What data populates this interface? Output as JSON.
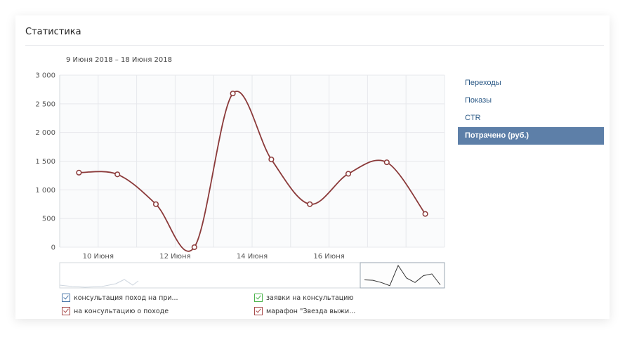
{
  "card": {
    "title": "Статистика"
  },
  "date_range": "9 Июня 2018 – 18 Июня 2018",
  "menu": {
    "items": [
      {
        "label": "Переходы",
        "active": false
      },
      {
        "label": "Показы",
        "active": false
      },
      {
        "label": "CTR",
        "active": false
      },
      {
        "label": "Потрачено (руб.)",
        "active": true
      }
    ]
  },
  "legend": [
    {
      "label": "консультация поход на при...",
      "color": "#4a76a8"
    },
    {
      "label": "заявки на консультацию",
      "color": "#4bb34b"
    },
    {
      "label": "на консультацию о походе",
      "color": "#a84a4a"
    },
    {
      "label": "марафон \"Звезда выжи...",
      "color": "#a84a4a"
    }
  ],
  "colors": {
    "line": "#8b3a3a",
    "grid": "#e7e8ec",
    "axis_text": "#555555",
    "active_menu": "#5d7fa8"
  },
  "chart_data": {
    "type": "line",
    "title": "",
    "xlabel": "",
    "ylabel": "",
    "ylim": [
      0,
      3000
    ],
    "yticks": [
      0,
      500,
      1000,
      1500,
      2000,
      2500,
      3000
    ],
    "ytick_labels": [
      "0",
      "500",
      "1 000",
      "1 500",
      "2 000",
      "2 500",
      "3 000"
    ],
    "xtick_labels": [
      "10 Июня",
      "12 Июня",
      "14 Июня",
      "16 Июня"
    ],
    "xtick_days": [
      10,
      12,
      14,
      16
    ],
    "grid": true,
    "series": [
      {
        "x": [
          9.5,
          10.5,
          11.5,
          12.5,
          13.5,
          14.5,
          15.5,
          16.5,
          17.5,
          18.5
        ],
        "values": [
          1300,
          1270,
          750,
          0,
          2680,
          1530,
          750,
          1280,
          1480,
          580
        ]
      }
    ],
    "navigator_series": {
      "values": [
        600,
        560,
        360,
        80,
        1900,
        760,
        360,
        980,
        1140,
        150
      ]
    }
  }
}
